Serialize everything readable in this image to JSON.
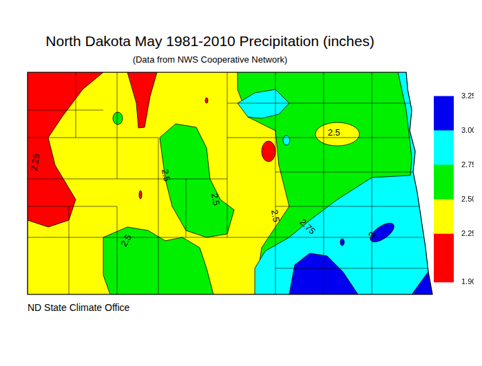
{
  "chart_data": {
    "type": "contour_map",
    "title": "North Dakota May 1981-2010 Precipitation (inches)",
    "subtitle": "(Data from NWS Cooperative Network)",
    "source": "ND State Climate Office",
    "colorbar": {
      "zlim": [
        1.9,
        3.25
      ],
      "ticks": [
        {
          "value": 1.9,
          "label": "1.90"
        },
        {
          "value": 2.25,
          "label": "2.25"
        },
        {
          "value": 2.5,
          "label": "2.50"
        },
        {
          "value": 2.75,
          "label": "2.75"
        },
        {
          "value": 3.0,
          "label": "3.00"
        },
        {
          "value": 3.25,
          "label": "3.25"
        }
      ],
      "colors": [
        "#ff0000",
        "#ffff00",
        "#00f000",
        "#00ffff",
        "#0000f0"
      ]
    },
    "zones": [
      2.5,
      2.25,
      2.5,
      2.5,
      2.5,
      1.9,
      1.9,
      1.9,
      1.9,
      1.9,
      2.75,
      2.75,
      2.75,
      3.0,
      3.0,
      3.0,
      3.0,
      2.25
    ],
    "contour_labels": [
      2.25,
      2.5,
      2.5,
      2.5,
      2.75,
      2.5,
      2.5,
      3
    ]
  }
}
